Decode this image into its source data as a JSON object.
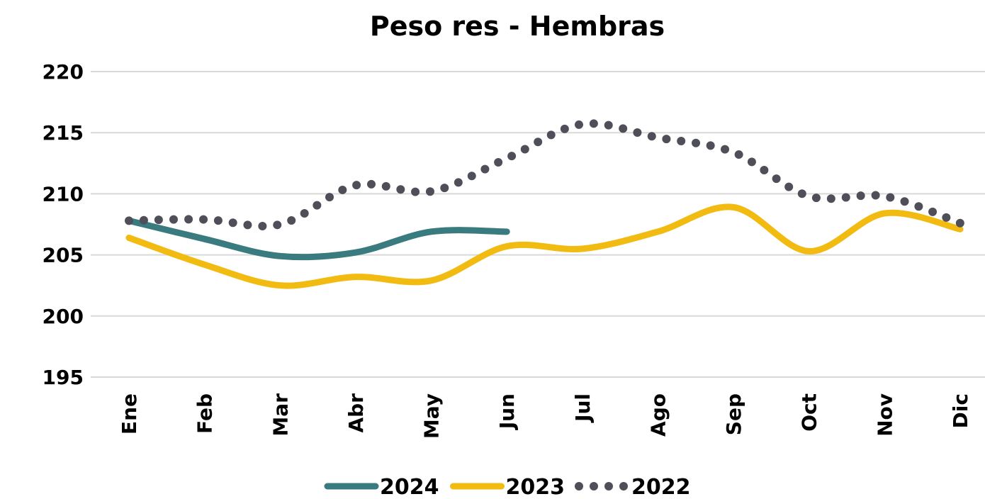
{
  "chart_data": {
    "type": "line",
    "title": "Peso res - Hembras",
    "categories": [
      "Ene",
      "Feb",
      "Mar",
      "Abr",
      "May",
      "Jun",
      "Jul",
      "Ago",
      "Sep",
      "Oct",
      "Nov",
      "Dic"
    ],
    "series": [
      {
        "name": "2024",
        "color": "#3a7b80",
        "style": "solid",
        "values": [
          207.8,
          206.3,
          204.9,
          205.2,
          206.9,
          206.9,
          null,
          null,
          null,
          null,
          null,
          null
        ]
      },
      {
        "name": "2023",
        "color": "#f2bb12",
        "style": "solid",
        "values": [
          206.4,
          204.2,
          202.5,
          203.2,
          202.9,
          205.7,
          205.5,
          206.9,
          208.9,
          205.3,
          208.4,
          207.1
        ]
      },
      {
        "name": "2022",
        "color": "#4f4f5a",
        "style": "dotted",
        "values": [
          207.8,
          207.9,
          207.5,
          210.7,
          210.2,
          212.9,
          215.7,
          214.6,
          213.4,
          209.8,
          209.8,
          207.6
        ]
      }
    ],
    "ylim": [
      195,
      220
    ],
    "yticks": [
      195,
      200,
      205,
      210,
      215,
      220
    ],
    "grid": true,
    "legend": "bottom"
  }
}
